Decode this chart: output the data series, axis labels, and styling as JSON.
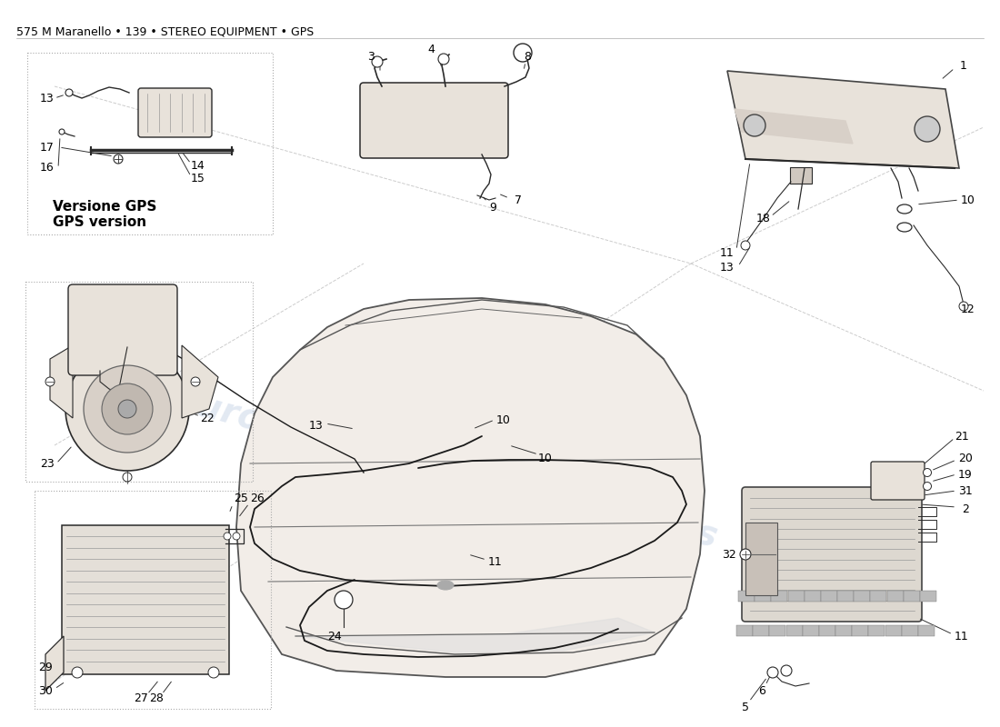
{
  "title": "575 M Maranello • 139 • STEREO EQUIPMENT • GPS",
  "bg": "#ffffff",
  "watermark_color": "#b8c8e0",
  "watermark_alpha": 0.4,
  "title_fontsize": 9,
  "label_fontsize": 9,
  "gps_text": "Versione GPS\nGPS version",
  "car_fill": "#f2ede8",
  "part_fill": "#e8e2da",
  "line_color": "#2a2a2a",
  "leader_color": "#333333"
}
